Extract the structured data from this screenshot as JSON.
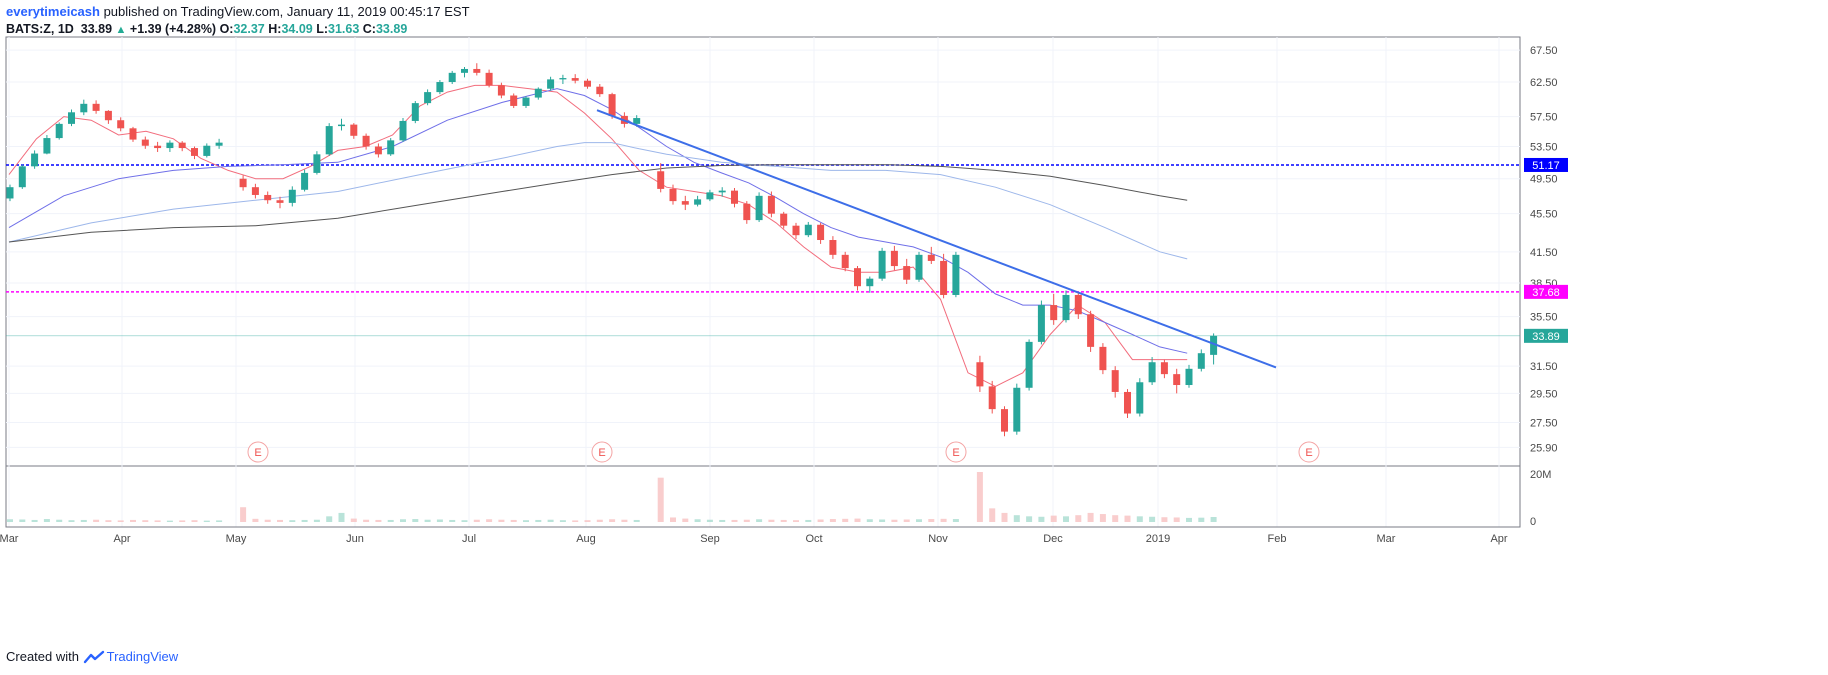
{
  "header": {
    "author": "everytimeicash",
    "published_text": "published on TradingView.com, January 11, 2019 00:45:17 EST"
  },
  "symbol": {
    "name": "BATS:Z, 1D",
    "last": "33.89",
    "change_arrow": "▲",
    "change": "+1.39 (+4.28%)",
    "o_label": "O:",
    "o": "32.37",
    "h_label": "H:",
    "h": "34.09",
    "l_label": "L:",
    "l": "31.63",
    "c_label": "C:",
    "c": "33.89"
  },
  "footer": {
    "created_with": "Created with",
    "brand": "TradingView"
  },
  "colors": {
    "bull": "#26a69a",
    "bear": "#ef5350",
    "blue_line": "#0000ff",
    "magenta_line": "#ff00ff",
    "trendline": "#3d6ee8",
    "ma_fast": "#f26d7d",
    "ma_slow": "#6f6fe8",
    "ma_100": "#9db7ea",
    "ma_200": "#555555"
  },
  "chart_data": {
    "type": "candlestick",
    "x_labels": [
      "Mar",
      "Apr",
      "May",
      "Jun",
      "Jul",
      "Aug",
      "Sep",
      "Oct",
      "Nov",
      "Dec",
      "2019",
      "Feb",
      "Mar",
      "Apr"
    ],
    "y_ticks": [
      "67.50",
      "62.50",
      "57.50",
      "53.50",
      "49.50",
      "45.50",
      "41.50",
      "38.50",
      "35.50",
      "31.50",
      "29.50",
      "27.50",
      "25.90"
    ],
    "volume_ticks": [
      "20M",
      "0"
    ],
    "ylim": [
      25.0,
      69.0
    ],
    "log_scale": true,
    "horizontal_levels": [
      {
        "value": 51.17,
        "label": "51.17",
        "color": "#0000ff"
      },
      {
        "value": 37.68,
        "label": "37.68",
        "color": "#ff00ff"
      },
      {
        "value": 33.89,
        "label": "33.89",
        "color": "#26a69a"
      }
    ],
    "earnings_markers": [
      "E",
      "E",
      "E",
      "E"
    ],
    "trendline": {
      "start": {
        "date": "2018-08-06",
        "value": 58.4
      },
      "end": {
        "date": "2019-01-31",
        "value": 31.4
      }
    },
    "moving_averages": [
      {
        "color": "#f26d7d",
        "points": [
          [
            0,
            50
          ],
          [
            2,
            54.5
          ],
          [
            4,
            57.5
          ],
          [
            6,
            57
          ],
          [
            8,
            55
          ],
          [
            10,
            55.5
          ],
          [
            12,
            54.5
          ],
          [
            14,
            52
          ],
          [
            16,
            50.5
          ],
          [
            18,
            49.5
          ],
          [
            20,
            49.5
          ],
          [
            22,
            51
          ],
          [
            24,
            53
          ],
          [
            26,
            53.5
          ],
          [
            28,
            55
          ],
          [
            30,
            59
          ],
          [
            32,
            61
          ],
          [
            34,
            62
          ],
          [
            36,
            62
          ],
          [
            38,
            61.5
          ],
          [
            40,
            61
          ],
          [
            42,
            58
          ],
          [
            44,
            54.5
          ],
          [
            46,
            50.5
          ],
          [
            48,
            48.5
          ],
          [
            50,
            48
          ],
          [
            52,
            47.5
          ],
          [
            54,
            46.5
          ],
          [
            56,
            44.5
          ],
          [
            58,
            42
          ],
          [
            60,
            40
          ],
          [
            62,
            39.5
          ],
          [
            64,
            39.5
          ],
          [
            66,
            40
          ],
          [
            68,
            37
          ],
          [
            70,
            31
          ],
          [
            72,
            30
          ],
          [
            74,
            31
          ],
          [
            76,
            34
          ],
          [
            78,
            36.5
          ],
          [
            80,
            35
          ],
          [
            82,
            32
          ],
          [
            84,
            32
          ],
          [
            86,
            32
          ]
        ]
      },
      {
        "color": "#6f6fe8",
        "points": [
          [
            0,
            44
          ],
          [
            4,
            47.5
          ],
          [
            8,
            49.5
          ],
          [
            12,
            50.5
          ],
          [
            16,
            51
          ],
          [
            20,
            51.2
          ],
          [
            24,
            51.5
          ],
          [
            28,
            53.5
          ],
          [
            32,
            57
          ],
          [
            36,
            59.5
          ],
          [
            38,
            60.5
          ],
          [
            40,
            61.5
          ],
          [
            42,
            60.5
          ],
          [
            44,
            58.5
          ],
          [
            46,
            56
          ],
          [
            48,
            53.5
          ],
          [
            50,
            51.5
          ],
          [
            52,
            50.2
          ],
          [
            54,
            49
          ],
          [
            56,
            47.3
          ],
          [
            58,
            45.5
          ],
          [
            60,
            44
          ],
          [
            62,
            43
          ],
          [
            64,
            42.5
          ],
          [
            66,
            42
          ],
          [
            68,
            41
          ],
          [
            70,
            39.5
          ],
          [
            72,
            37.5
          ],
          [
            74,
            36.5
          ],
          [
            76,
            36.5
          ],
          [
            78,
            36
          ],
          [
            80,
            35
          ],
          [
            82,
            34
          ],
          [
            84,
            33
          ],
          [
            86,
            32.5
          ]
        ]
      },
      {
        "color": "#9db7ea",
        "points": [
          [
            0,
            42.5
          ],
          [
            6,
            44.5
          ],
          [
            12,
            46
          ],
          [
            18,
            47
          ],
          [
            24,
            48
          ],
          [
            30,
            50
          ],
          [
            36,
            52
          ],
          [
            40,
            53.5
          ],
          [
            42,
            54
          ],
          [
            44,
            54
          ],
          [
            46,
            53.2
          ],
          [
            48,
            52.5
          ],
          [
            52,
            51.5
          ],
          [
            56,
            51
          ],
          [
            60,
            50.5
          ],
          [
            64,
            50.5
          ],
          [
            68,
            50
          ],
          [
            72,
            48.5
          ],
          [
            76,
            46.5
          ],
          [
            80,
            44
          ],
          [
            84,
            41.5
          ],
          [
            86,
            40.8
          ]
        ]
      },
      {
        "color": "#555555",
        "points": [
          [
            0,
            42.5
          ],
          [
            6,
            43.5
          ],
          [
            12,
            44
          ],
          [
            18,
            44.2
          ],
          [
            24,
            45
          ],
          [
            30,
            46.5
          ],
          [
            36,
            48
          ],
          [
            40,
            49
          ],
          [
            44,
            50
          ],
          [
            48,
            50.8
          ],
          [
            52,
            51.1
          ],
          [
            56,
            51.2
          ],
          [
            60,
            51.2
          ],
          [
            64,
            51.2
          ],
          [
            68,
            51
          ],
          [
            72,
            50.5
          ],
          [
            76,
            49.8
          ],
          [
            80,
            48.7
          ],
          [
            84,
            47.5
          ],
          [
            86,
            47
          ]
        ]
      }
    ],
    "candles": [
      [
        47.2,
        48.8,
        46.9,
        48.5
      ],
      [
        48.5,
        51.2,
        48.3,
        51
      ],
      [
        51,
        53,
        50.7,
        52.6
      ],
      [
        52.6,
        55,
        52.5,
        54.6
      ],
      [
        54.6,
        56.7,
        54.4,
        56.5
      ],
      [
        56.5,
        58.5,
        56.2,
        58.1
      ],
      [
        58.1,
        59.9,
        57.7,
        59.3
      ],
      [
        59.3,
        59.8,
        57.9,
        58.3
      ],
      [
        58.3,
        58.4,
        56.5,
        57
      ],
      [
        57,
        57.4,
        55.5,
        55.9
      ],
      [
        55.9,
        56.1,
        54.1,
        54.4
      ],
      [
        54.4,
        54.8,
        53.2,
        53.6
      ],
      [
        53.6,
        54.1,
        52.8,
        53.3
      ],
      [
        53.3,
        54.3,
        52.8,
        54
      ],
      [
        54,
        54.2,
        52.9,
        53.3
      ],
      [
        53.3,
        53.5,
        51.9,
        52.3
      ],
      [
        52.3,
        53.9,
        52.1,
        53.6
      ],
      [
        53.6,
        54.5,
        53.2,
        54
      ],
      [
        49.5,
        49.9,
        48.1,
        48.5
      ],
      [
        48.5,
        48.9,
        47.2,
        47.6
      ],
      [
        47.6,
        48,
        46.6,
        47
      ],
      [
        47,
        47.4,
        46.1,
        46.7
      ],
      [
        46.7,
        48.6,
        46.3,
        48.2
      ],
      [
        48.2,
        50.6,
        48,
        50.2
      ],
      [
        50.2,
        52.9,
        50,
        52.5
      ],
      [
        52.5,
        56.6,
        52.3,
        56.2
      ],
      [
        56.2,
        57.2,
        55.6,
        56.4
      ],
      [
        56.4,
        56.6,
        54.5,
        54.9
      ],
      [
        54.9,
        55.2,
        53.1,
        53.5
      ],
      [
        53.5,
        53.9,
        52.1,
        52.5
      ],
      [
        52.5,
        54.6,
        52.3,
        54.3
      ],
      [
        54.3,
        57.3,
        54.1,
        56.9
      ],
      [
        56.9,
        59.7,
        56.6,
        59.4
      ],
      [
        59.4,
        61.4,
        59.1,
        61
      ],
      [
        61,
        62.8,
        60.7,
        62.5
      ],
      [
        62.5,
        64.2,
        62.2,
        63.9
      ],
      [
        63.9,
        64.8,
        63.2,
        64.5
      ],
      [
        64.5,
        65.4,
        63.5,
        63.9
      ],
      [
        63.9,
        64.4,
        61.7,
        62
      ],
      [
        62,
        62.4,
        60.1,
        60.5
      ],
      [
        60.5,
        60.8,
        58.7,
        59
      ],
      [
        59,
        60.4,
        58.7,
        60.2
      ],
      [
        60.2,
        61.7,
        59.9,
        61.5
      ],
      [
        61.5,
        63.3,
        61.2,
        62.9
      ],
      [
        62.9,
        63.6,
        62.2,
        63.1
      ],
      [
        63.1,
        63.7,
        62.3,
        62.7
      ],
      [
        62.7,
        63,
        61.5,
        61.8
      ],
      [
        61.8,
        62.2,
        60.3,
        60.7
      ],
      [
        60.7,
        60.9,
        57.2,
        57.6
      ],
      [
        57.6,
        58.1,
        56,
        56.5
      ],
      [
        56.5,
        57.7,
        56.1,
        57.3
      ],
      [
        50.4,
        51.4,
        47.9,
        48.3
      ],
      [
        48.3,
        48.8,
        46.5,
        46.9
      ],
      [
        46.9,
        47.5,
        45.9,
        46.5
      ],
      [
        46.5,
        47.5,
        46.3,
        47.1
      ],
      [
        47.1,
        48.2,
        46.9,
        47.9
      ],
      [
        47.9,
        48.5,
        47.4,
        48.1
      ],
      [
        48.1,
        48.4,
        46.2,
        46.6
      ],
      [
        46.6,
        46.9,
        44.4,
        44.8
      ],
      [
        44.8,
        47.9,
        44.6,
        47.5
      ],
      [
        47.5,
        48,
        45.1,
        45.5
      ],
      [
        45.5,
        45.7,
        43.9,
        44.2
      ],
      [
        44.2,
        44.5,
        42.8,
        43.2
      ],
      [
        43.2,
        44.6,
        43,
        44.3
      ],
      [
        44.3,
        44.5,
        42.3,
        42.7
      ],
      [
        42.7,
        43.1,
        40.8,
        41.2
      ],
      [
        41.2,
        41.5,
        39.6,
        39.9
      ],
      [
        39.9,
        40.1,
        37.8,
        38.2
      ],
      [
        38.2,
        39.1,
        37.6,
        38.9
      ],
      [
        38.9,
        41.9,
        38.7,
        41.6
      ],
      [
        41.6,
        42.1,
        39.7,
        40.1
      ],
      [
        40.1,
        40.8,
        38.4,
        38.8
      ],
      [
        38.8,
        41.5,
        38.6,
        41.2
      ],
      [
        41.2,
        42,
        40.3,
        40.6
      ],
      [
        40.6,
        41.3,
        37.1,
        37.4
      ],
      [
        37.4,
        41.5,
        37.2,
        41.2
      ],
      [
        31.8,
        32.3,
        29.6,
        30
      ],
      [
        30,
        30.4,
        28.1,
        28.4
      ],
      [
        28.4,
        28.6,
        26.6,
        26.9
      ],
      [
        26.9,
        30.2,
        26.7,
        29.9
      ],
      [
        29.9,
        33.6,
        29.7,
        33.4
      ],
      [
        33.4,
        36.9,
        33.2,
        36.5
      ],
      [
        36.5,
        37.5,
        34.8,
        35.2
      ],
      [
        35.2,
        37.8,
        35,
        37.4
      ],
      [
        37.4,
        37.6,
        35.3,
        35.7
      ],
      [
        35.7,
        36,
        32.6,
        33
      ],
      [
        33,
        33.3,
        30.9,
        31.2
      ],
      [
        31.2,
        31.5,
        29.2,
        29.6
      ],
      [
        29.6,
        29.8,
        27.8,
        28.1
      ],
      [
        28.1,
        30.6,
        27.9,
        30.3
      ],
      [
        30.3,
        32.2,
        30.1,
        31.8
      ],
      [
        31.8,
        32,
        30.6,
        30.9
      ],
      [
        30.9,
        31.3,
        29.5,
        30.1
      ],
      [
        30.1,
        31.6,
        29.9,
        31.3
      ],
      [
        31.3,
        32.8,
        31.1,
        32.5
      ],
      [
        32.37,
        34.09,
        31.63,
        33.89
      ]
    ],
    "volume": [
      1.2,
      1.1,
      0.9,
      1.3,
      1,
      0.8,
      0.9,
      1,
      0.8,
      0.7,
      0.9,
      0.8,
      0.7,
      0.6,
      0.7,
      0.8,
      0.6,
      0.7,
      6.5,
      1.4,
      1,
      0.9,
      0.8,
      0.9,
      1,
      2.5,
      4,
      1.5,
      1,
      0.9,
      0.9,
      1.2,
      1.3,
      1,
      1.1,
      0.9,
      0.8,
      1,
      1.2,
      1,
      0.9,
      0.8,
      0.9,
      1,
      0.8,
      0.7,
      0.8,
      1,
      1.2,
      1,
      0.9,
      19.5,
      2,
      1.5,
      1.2,
      1,
      0.9,
      0.9,
      1,
      1.2,
      1,
      0.9,
      0.8,
      0.9,
      1.1,
      1.3,
      1.4,
      1.5,
      1.2,
      1.1,
      1,
      1.1,
      1.2,
      1.3,
      1.4,
      1.3,
      22,
      6,
      4,
      3,
      2.5,
      2.3,
      2.8,
      2.5,
      3,
      4,
      3.5,
      3,
      2.8,
      2.5,
      2.3,
      2.1,
      2,
      1.8,
      1.9,
      2.2
    ],
    "volume_ylim": [
      0,
      22
    ]
  }
}
